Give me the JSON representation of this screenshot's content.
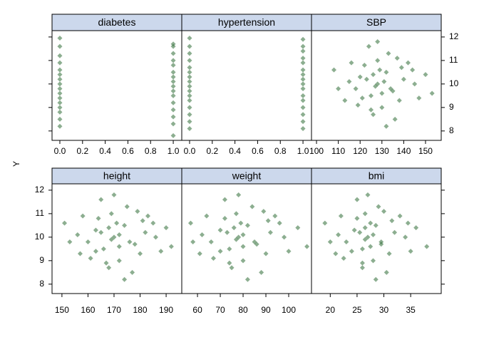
{
  "ylabel": "Y",
  "chart_data": [
    {
      "type": "scatter",
      "title": "diabetes",
      "x": [
        0,
        0,
        0,
        0,
        0,
        0,
        0,
        0,
        0,
        0,
        0,
        0,
        0,
        0,
        0,
        0,
        1,
        1,
        1,
        1,
        1,
        1,
        1,
        1,
        1,
        1,
        1,
        1,
        1,
        1,
        1,
        1
      ],
      "y": [
        8.2,
        8.5,
        8.8,
        9.0,
        9.2,
        9.4,
        9.6,
        9.8,
        10.0,
        10.2,
        10.4,
        10.6,
        10.9,
        11.2,
        11.6,
        11.95,
        7.8,
        8.3,
        8.6,
        8.9,
        9.2,
        9.5,
        9.7,
        9.9,
        10.1,
        10.3,
        10.5,
        10.8,
        11.0,
        11.3,
        11.6,
        11.7
      ],
      "xlim": [
        -0.069,
        1.075
      ],
      "ylim": [
        7.6,
        12.27
      ],
      "xticks": [
        {
          "value": 0,
          "label": "0.0"
        },
        0.2,
        0.4,
        0.6,
        0.8,
        {
          "value": 1,
          "label": "1.0"
        }
      ],
      "color": "#2e6b34"
    },
    {
      "type": "scatter",
      "title": "hypertension",
      "x": [
        0,
        0,
        0,
        0,
        0,
        0,
        0,
        0,
        0,
        0,
        0,
        0,
        0,
        0,
        0,
        0,
        1,
        1,
        1,
        1,
        1,
        1,
        1,
        1,
        1,
        1,
        1,
        1,
        1,
        1,
        1,
        1
      ],
      "y": [
        8.1,
        8.4,
        8.7,
        9.0,
        9.3,
        9.5,
        9.7,
        9.9,
        10.1,
        10.3,
        10.5,
        10.7,
        11.0,
        11.3,
        11.6,
        11.95,
        8.1,
        8.4,
        8.7,
        9.0,
        9.3,
        9.5,
        9.8,
        10.0,
        10.2,
        10.4,
        10.6,
        10.9,
        11.1,
        11.4,
        11.6,
        11.9
      ],
      "xlim": [
        -0.069,
        1.075
      ],
      "ylim": [
        7.6,
        12.27
      ],
      "xticks": [
        {
          "value": 0,
          "label": "0.0"
        },
        0.2,
        0.4,
        0.6,
        0.8,
        {
          "value": 1,
          "label": "1.0"
        }
      ],
      "color": "#2e6b34"
    },
    {
      "type": "scatter",
      "title": "SBP",
      "x": [
        128,
        120,
        135,
        125,
        132,
        118,
        140,
        128,
        130,
        122,
        138,
        115,
        145,
        126,
        133,
        110,
        150,
        124,
        136,
        129,
        119,
        142,
        127,
        131,
        123,
        134,
        108,
        147,
        121,
        139,
        126,
        130,
        113,
        137,
        125,
        128,
        144,
        116,
        132,
        153
      ],
      "y": [
        10,
        10.3,
        9.7,
        9.5,
        10.5,
        9.8,
        10.2,
        11,
        9,
        10.8,
        9.3,
        10.1,
        10,
        8.7,
        11.3,
        9.8,
        10.4,
        11.6,
        8.5,
        10.6,
        9.1,
        10.9,
        9.9,
        10.1,
        10.2,
        9.8,
        10.6,
        9.4,
        9.4,
        10.7,
        10.4,
        9.6,
        9.3,
        11.1,
        8.9,
        11.8,
        10.6,
        10.9,
        8.2,
        9.6
      ],
      "xlim": [
        97.7,
        157.2
      ],
      "ylim": [
        7.6,
        12.27
      ],
      "xticks": [
        100,
        110,
        120,
        130,
        140,
        150
      ],
      "yticks": [
        8,
        9,
        10,
        11,
        12
      ],
      "color": "#2e6b34"
    },
    {
      "type": "scatter",
      "title": "height",
      "x": [
        170,
        163,
        178,
        166,
        174,
        160,
        182,
        169,
        172,
        164,
        180,
        156,
        186,
        168,
        175,
        153,
        190,
        165,
        177,
        171,
        161,
        183,
        169,
        172,
        165,
        176,
        151,
        188,
        163,
        181,
        168,
        172,
        157,
        179,
        167,
        170,
        185,
        158,
        174,
        192
      ],
      "y": [
        10,
        10.3,
        9.7,
        9.5,
        10.5,
        9.8,
        10.2,
        11,
        9,
        10.8,
        9.3,
        10.1,
        10,
        8.7,
        11.3,
        9.8,
        10.4,
        11.6,
        8.5,
        10.6,
        9.1,
        10.9,
        9.9,
        10.1,
        10.2,
        9.8,
        10.6,
        9.4,
        9.4,
        10.7,
        10.4,
        9.6,
        9.3,
        11.1,
        8.9,
        11.8,
        10.6,
        10.9,
        8.2,
        9.6
      ],
      "xlim": [
        146.2,
        196.0
      ],
      "ylim": [
        7.6,
        12.27
      ],
      "xticks": [
        150,
        160,
        170,
        180,
        190
      ],
      "yticks": [
        8,
        9,
        10,
        11,
        12
      ],
      "color": "#2e6b34"
    },
    {
      "type": "scatter",
      "title": "weight",
      "x": [
        78,
        70,
        86,
        74,
        82,
        66,
        92,
        77,
        80,
        72,
        90,
        62,
        98,
        75,
        84,
        58,
        104,
        72,
        88,
        79,
        67,
        94,
        77,
        80,
        73,
        85,
        57,
        100,
        70,
        91,
        76,
        80,
        61,
        89,
        74,
        78,
        96,
        64,
        82,
        108
      ],
      "y": [
        10,
        10.3,
        9.7,
        9.5,
        10.5,
        9.8,
        10.2,
        11,
        9,
        10.8,
        9.3,
        10.1,
        10,
        8.7,
        11.3,
        9.8,
        10.4,
        11.6,
        8.5,
        10.6,
        9.1,
        10.9,
        9.9,
        10.1,
        10.2,
        9.8,
        10.6,
        9.4,
        9.4,
        10.7,
        10.4,
        9.6,
        9.3,
        11.1,
        8.9,
        11.8,
        10.6,
        10.9,
        8.2,
        9.6
      ],
      "xlim": [
        53.1,
        110.0
      ],
      "ylim": [
        7.6,
        12.27
      ],
      "xticks": [
        60,
        70,
        80,
        90,
        100
      ],
      "color": "#2e6b34"
    },
    {
      "type": "scatter",
      "title": "bmi",
      "x": [
        27,
        24.5,
        29.5,
        26,
        28.5,
        23,
        32,
        26.5,
        28,
        25,
        31,
        21.5,
        34,
        26,
        29,
        20,
        36,
        25,
        30.5,
        27.5,
        22.5,
        33,
        26.5,
        28,
        25.5,
        29.5,
        19,
        35,
        24,
        31.5,
        26.5,
        27.5,
        21,
        30,
        26,
        27,
        34.5,
        22,
        28.5,
        38
      ],
      "y": [
        10,
        10.3,
        9.7,
        9.5,
        10.5,
        9.8,
        10.2,
        11,
        9,
        10.8,
        9.3,
        10.1,
        10,
        8.7,
        11.3,
        9.8,
        10.4,
        11.6,
        8.5,
        10.6,
        9.1,
        10.9,
        9.9,
        10.1,
        10.2,
        9.8,
        10.6,
        9.4,
        9.4,
        10.7,
        10.4,
        9.6,
        9.3,
        11.1,
        8.9,
        11.8,
        10.6,
        10.9,
        8.2,
        9.6
      ],
      "xlim": [
        16.5,
        40.7
      ],
      "ylim": [
        7.6,
        12.27
      ],
      "xticks": [
        20,
        25,
        30,
        35
      ],
      "color": "#2e6b34"
    }
  ]
}
